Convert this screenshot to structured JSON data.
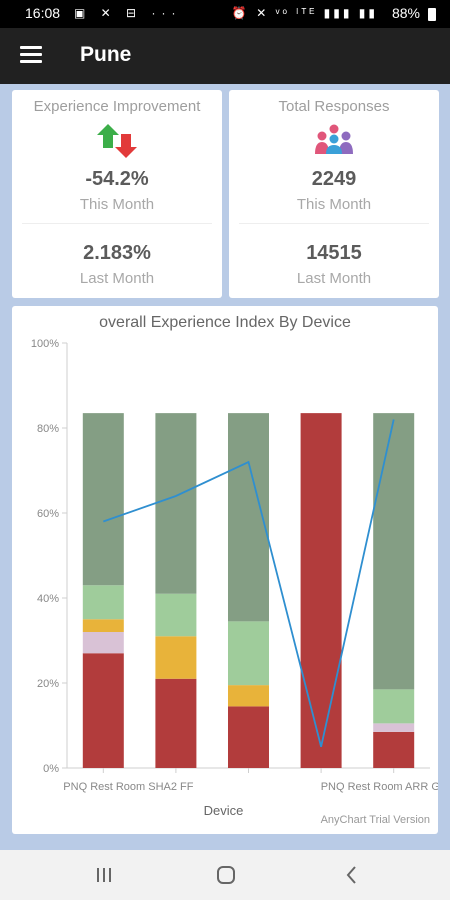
{
  "status_bar": {
    "time": "16:08",
    "left_icons": "▣ ✕ ⊟ ···",
    "right_icons": "⏰ ✕ ᵛᵒ ˡᵀᴱ ▮▮▮ ▮▮",
    "battery": "88%"
  },
  "app_bar": {
    "title": "Pune",
    "menu_icon": "hamburger-menu-icon"
  },
  "kpi_cards": [
    {
      "title": "Experience Improvement",
      "icon": "up-down-arrows-icon",
      "this_month_value": "-54.2%",
      "this_month_label": "This Month",
      "last_month_value": "2.183%",
      "last_month_label": "Last Month"
    },
    {
      "title": "Total Responses",
      "icon": "users-group-icon",
      "this_month_value": "2249",
      "this_month_label": "This Month",
      "last_month_value": "14515",
      "last_month_label": "Last Month"
    }
  ],
  "chart_data": {
    "type": "bar",
    "stacked": true,
    "title": "overall Experience Index By Device",
    "xlabel": "Device",
    "ylabel": "",
    "ylim": [
      0,
      100
    ],
    "y_ticks": [
      "0%",
      "20%",
      "40%",
      "60%",
      "80%",
      "100%"
    ],
    "categories": [
      "PNQ Rest Room SHA2 FF",
      "",
      "",
      "",
      "PNQ Rest Room ARR G"
    ],
    "x_tick_labels": [
      "PNQ Rest Room SHA2 FF",
      "PNQ Rest Room ARR G"
    ],
    "series": [
      {
        "color": "#b23c3c",
        "values": [
          27,
          21,
          14.5,
          83.5,
          8.5
        ]
      },
      {
        "color": "#d9c2d6",
        "values": [
          5,
          0,
          0,
          0,
          2
        ]
      },
      {
        "color": "#e8b33a",
        "values": [
          3,
          10,
          5,
          0,
          0
        ]
      },
      {
        "color": "#9fcc9b",
        "values": [
          8,
          10,
          15,
          0,
          8
        ]
      },
      {
        "color": "#849e84",
        "values": [
          40.5,
          42.5,
          49,
          0,
          65
        ]
      }
    ],
    "line": {
      "color": "#2f8fd0",
      "values": [
        58,
        64,
        72,
        5,
        82
      ]
    },
    "grid": false,
    "legend": "none",
    "watermark": "AnyChart Trial Version"
  },
  "nav_bar": {
    "recent_icon": "recent-apps-icon",
    "home_icon": "home-icon",
    "back_icon": "back-icon"
  },
  "colors": {
    "app_bar": "#212121",
    "background": "#b9cbe6",
    "up_arrow": "#3cae49",
    "down_arrow": "#e23a3a"
  }
}
